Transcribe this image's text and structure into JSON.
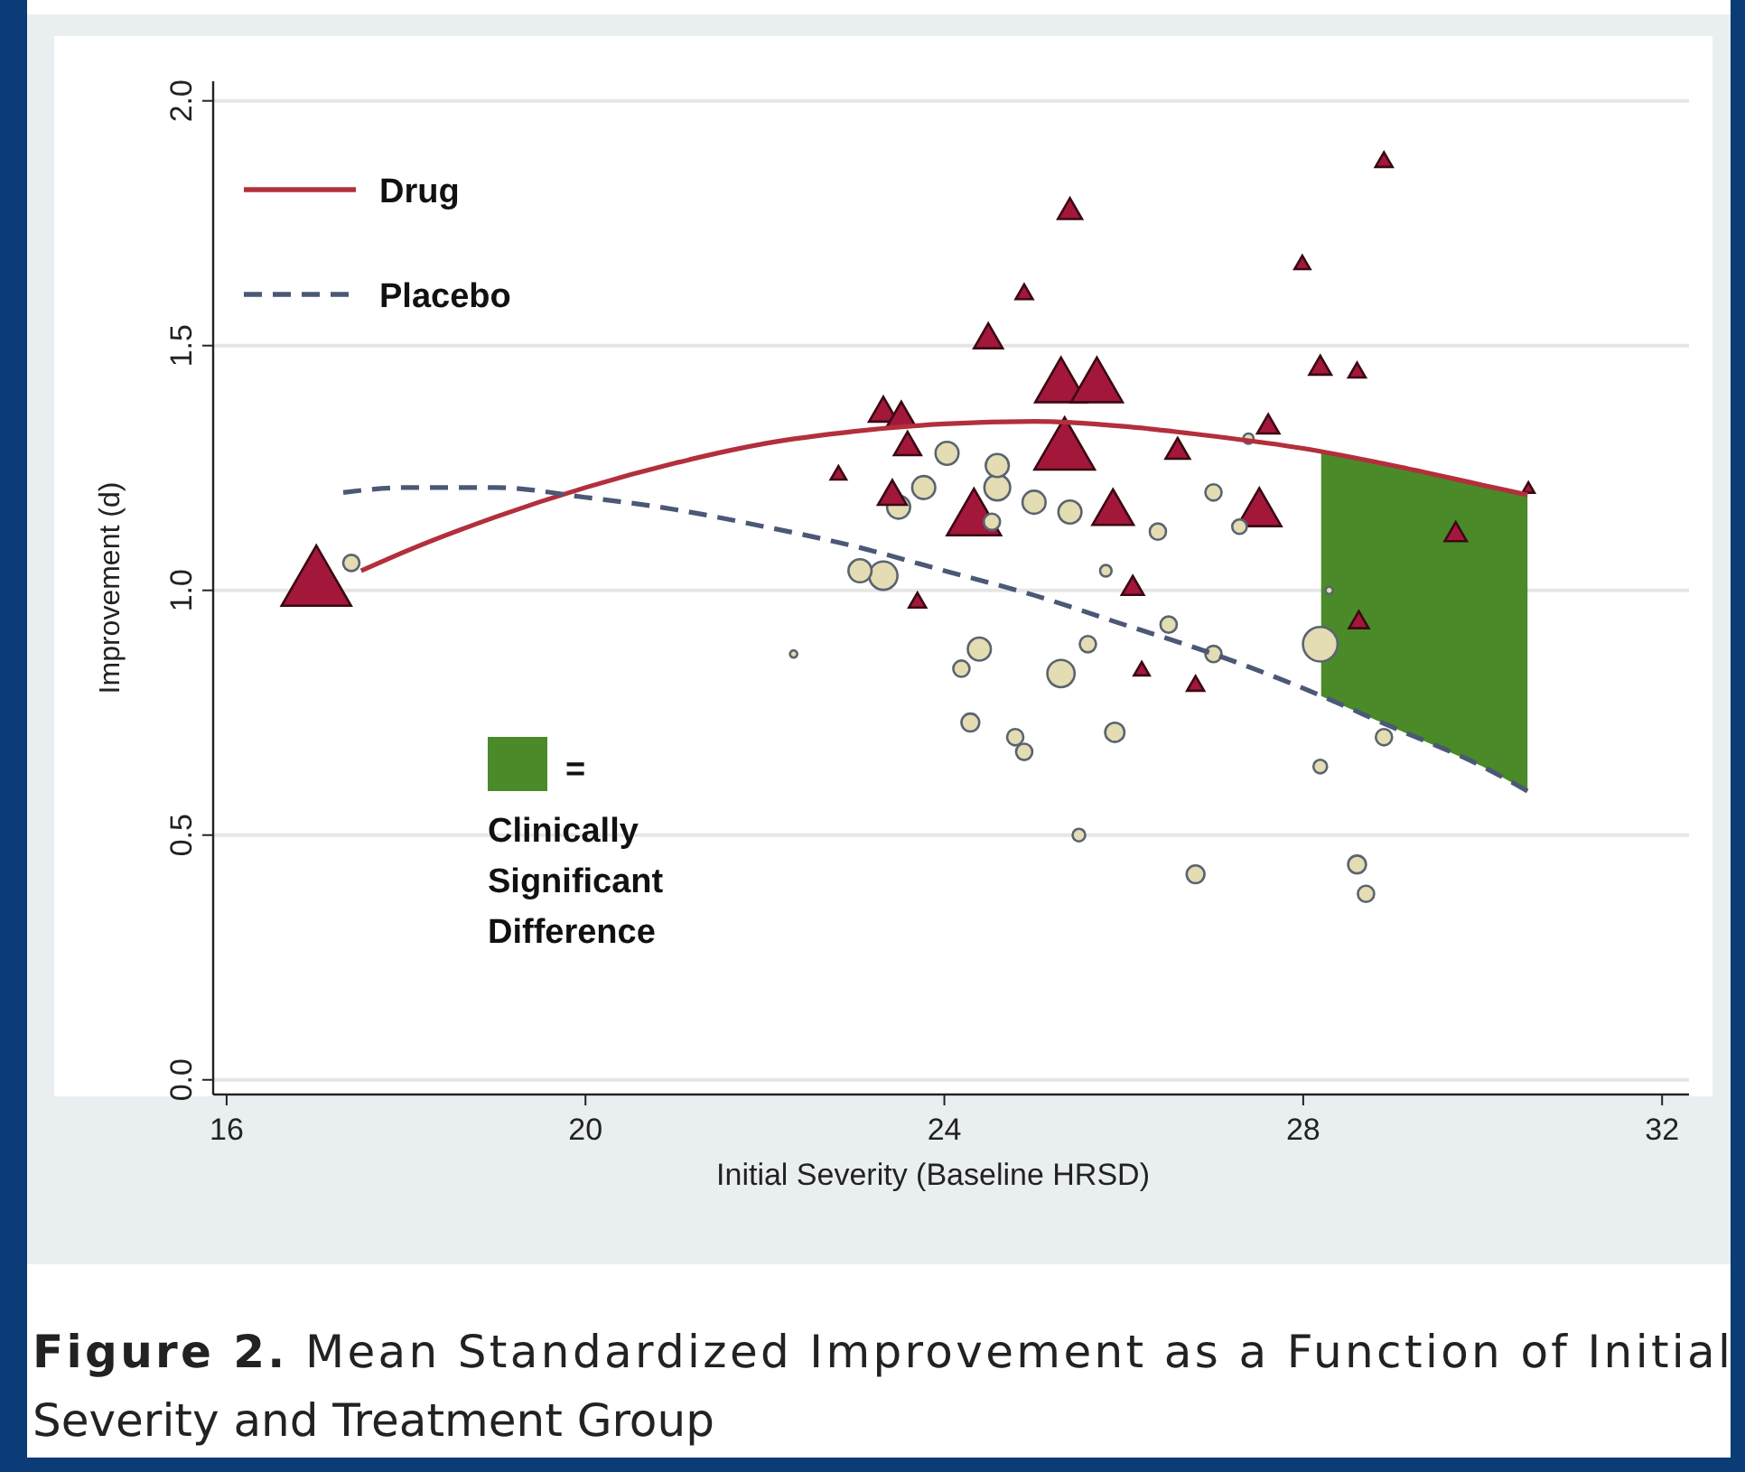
{
  "chart_data": {
    "type": "bubble",
    "xlabel": "Initial Severity (Baseline HRSD)",
    "ylabel": "Improvement (d)",
    "xlim": [
      15.85,
      32.3
    ],
    "ylim": [
      -0.03,
      2.04
    ],
    "xticks": [
      16,
      20,
      24,
      28,
      32
    ],
    "yticks": [
      {
        "value": 0,
        "label": "0.0"
      },
      {
        "value": 0.5,
        "label": "0.5"
      },
      {
        "value": 1,
        "label": "1.0"
      },
      {
        "value": 1.5,
        "label": "1.5"
      },
      {
        "value": 2,
        "label": "2.0"
      }
    ],
    "grid": "y",
    "legend": "top left",
    "series": [
      {
        "type": "area",
        "name": "= Clinically Significant Difference",
        "color": "#4a8a29",
        "x": [
          28.2,
          29,
          30,
          30.5
        ],
        "values": [
          1.285,
          1.255,
          1.215,
          1.195
        ]
      },
      {
        "marker": "triangle",
        "color": "#a3173b",
        "x": [
          17.0,
          28.9,
          25.4,
          27.99,
          24.89,
          24.49,
          28.19,
          28.6,
          25.3,
          25.7,
          23.32,
          23.52,
          23.59,
          25.34,
          27.61,
          26.6,
          22.82,
          23.42,
          24.33,
          25.88,
          27.51,
          29.7,
          30.51,
          23.7,
          26.1,
          28.62,
          26.2,
          26.8
        ],
        "values": [
          1.03,
          1.88,
          1.78,
          1.67,
          1.61,
          1.52,
          1.46,
          1.45,
          1.43,
          1.43,
          1.37,
          1.36,
          1.3,
          1.3,
          1.34,
          1.29,
          1.24,
          1.2,
          1.16,
          1.17,
          1.17,
          1.12,
          1.21,
          0.98,
          1.01,
          0.94,
          0.84,
          0.81
        ],
        "sizes": [
          1,
          0.06,
          0.12,
          0.05,
          0.06,
          0.17,
          0.1,
          0.06,
          0.55,
          0.55,
          0.17,
          0.17,
          0.15,
          0.75,
          0.1,
          0.12,
          0.05,
          0.17,
          0.6,
          0.35,
          0.4,
          0.1,
          0.03,
          0.06,
          0.1,
          0.08,
          0.05,
          0.06
        ]
      },
      {
        "marker": "circle",
        "color": "#e4dcb2",
        "x": [
          17.39,
          24.03,
          23.77,
          23.49,
          24.59,
          24.59,
          25.0,
          25.4,
          24.53,
          26.38,
          27.0,
          27.29,
          27.39,
          23.32,
          23.06,
          25.8,
          28.29,
          22.32,
          24.39,
          24.19,
          25.3,
          25.6,
          26.5,
          27.0,
          28.19,
          24.29,
          24.79,
          24.89,
          25.9,
          28.9,
          28.19,
          25.5,
          26.8,
          28.6,
          28.7
        ],
        "values": [
          1.056,
          1.28,
          1.21,
          1.17,
          1.255,
          1.21,
          1.18,
          1.16,
          1.14,
          1.12,
          1.2,
          1.13,
          1.31,
          1.03,
          1.04,
          1.04,
          1.0,
          0.87,
          0.88,
          0.84,
          0.83,
          0.89,
          0.93,
          0.87,
          0.89,
          0.73,
          0.7,
          0.67,
          0.71,
          0.7,
          0.64,
          0.5,
          0.42,
          0.44,
          0.38
        ],
        "sizes": [
          0.1,
          0.2,
          0.2,
          0.2,
          0.2,
          0.25,
          0.2,
          0.2,
          0.1,
          0.1,
          0.1,
          0.08,
          0.04,
          0.3,
          0.2,
          0.05,
          0.02,
          0.02,
          0.2,
          0.1,
          0.28,
          0.1,
          0.1,
          0.1,
          0.45,
          0.12,
          0.1,
          0.1,
          0.14,
          0.1,
          0.07,
          0.06,
          0.12,
          0.12,
          0.1
        ]
      },
      {
        "type": "line",
        "name": "Drug",
        "color": "#b32f3c",
        "line_style": "solid",
        "x": [
          17.5,
          18,
          19,
          20,
          21,
          22,
          23,
          24,
          25,
          26,
          27,
          28,
          29,
          30,
          30.5
        ],
        "values": [
          1.04,
          1.08,
          1.15,
          1.21,
          1.26,
          1.3,
          1.325,
          1.34,
          1.345,
          1.335,
          1.315,
          1.29,
          1.255,
          1.215,
          1.195
        ]
      },
      {
        "type": "line",
        "name": "Placebo",
        "color": "#4b5876",
        "line_style": "dashed",
        "x": [
          17.3,
          18,
          19,
          20,
          21,
          22,
          23,
          24,
          25,
          26,
          27,
          28,
          29,
          30,
          30.5
        ],
        "values": [
          1.2,
          1.21,
          1.21,
          1.19,
          1.165,
          1.13,
          1.09,
          1.04,
          0.99,
          0.93,
          0.87,
          0.8,
          0.72,
          0.64,
          0.59
        ]
      }
    ],
    "annotations": [
      "Figure 2. Mean Standardized Improvement as a Function of Initial Severity and Treatment Group"
    ]
  }
}
